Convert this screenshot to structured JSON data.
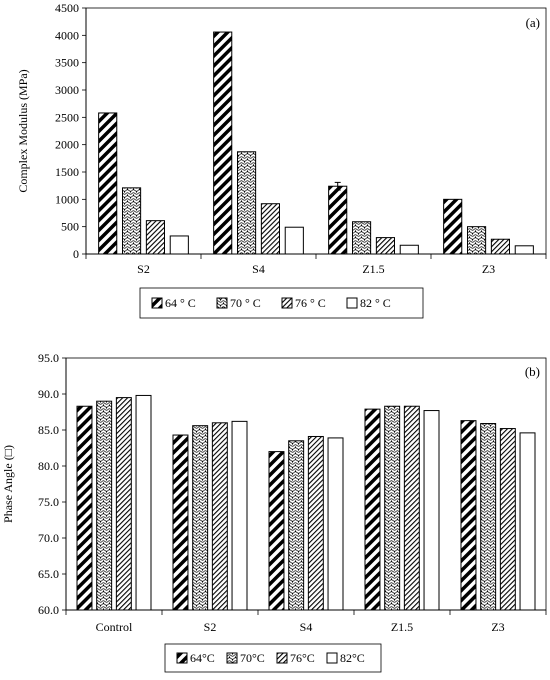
{
  "chart_data": [
    {
      "type": "bar",
      "panel_label": "(a)",
      "ylabel": "Complex Modulus (MPa)",
      "xlabel": "",
      "categories": [
        "S2",
        "S4",
        "Z1.5",
        "Z3"
      ],
      "ylim": [
        0,
        4500
      ],
      "yticks": [
        "0",
        "500",
        "1000",
        "1500",
        "2000",
        "2500",
        "3000",
        "3500",
        "4000",
        "4500"
      ],
      "series": [
        {
          "name": "64 ° C",
          "pattern": "hatch-back",
          "values": [
            2580,
            4060,
            1240,
            1000
          ]
        },
        {
          "name": "70 ° C",
          "pattern": "wave",
          "values": [
            1210,
            1870,
            590,
            500
          ]
        },
        {
          "name": "76 ° C",
          "pattern": "hatch-fine",
          "values": [
            610,
            920,
            300,
            270
          ]
        },
        {
          "name": "82 ° C",
          "pattern": "none",
          "values": [
            330,
            490,
            160,
            150
          ]
        }
      ],
      "error_bar": {
        "category": "Z1.5",
        "series": "64 ° C",
        "plus_minus": 70
      },
      "grid": false,
      "legend": "bottom"
    },
    {
      "type": "bar",
      "panel_label": "(b)",
      "ylabel": "Phase Angle (□)",
      "xlabel": "",
      "categories": [
        "Control",
        "S2",
        "S4",
        "Z1.5",
        "Z3"
      ],
      "ylim": [
        60,
        95
      ],
      "yticks": [
        "60.0",
        "65.0",
        "70.0",
        "75.0",
        "80.0",
        "85.0",
        "90.0",
        "95.0"
      ],
      "series": [
        {
          "name": "64°C",
          "pattern": "hatch-back",
          "values": [
            88.3,
            84.3,
            82.0,
            87.9,
            86.3
          ]
        },
        {
          "name": "70°C",
          "pattern": "wave",
          "values": [
            89.0,
            85.6,
            83.5,
            88.3,
            85.9
          ]
        },
        {
          "name": "76°C",
          "pattern": "hatch-fine",
          "values": [
            89.5,
            86.0,
            84.1,
            88.3,
            85.2
          ]
        },
        {
          "name": "82°C",
          "pattern": "none",
          "values": [
            89.8,
            86.2,
            83.9,
            87.7,
            84.6
          ]
        }
      ],
      "grid": false,
      "legend": "bottom"
    }
  ]
}
